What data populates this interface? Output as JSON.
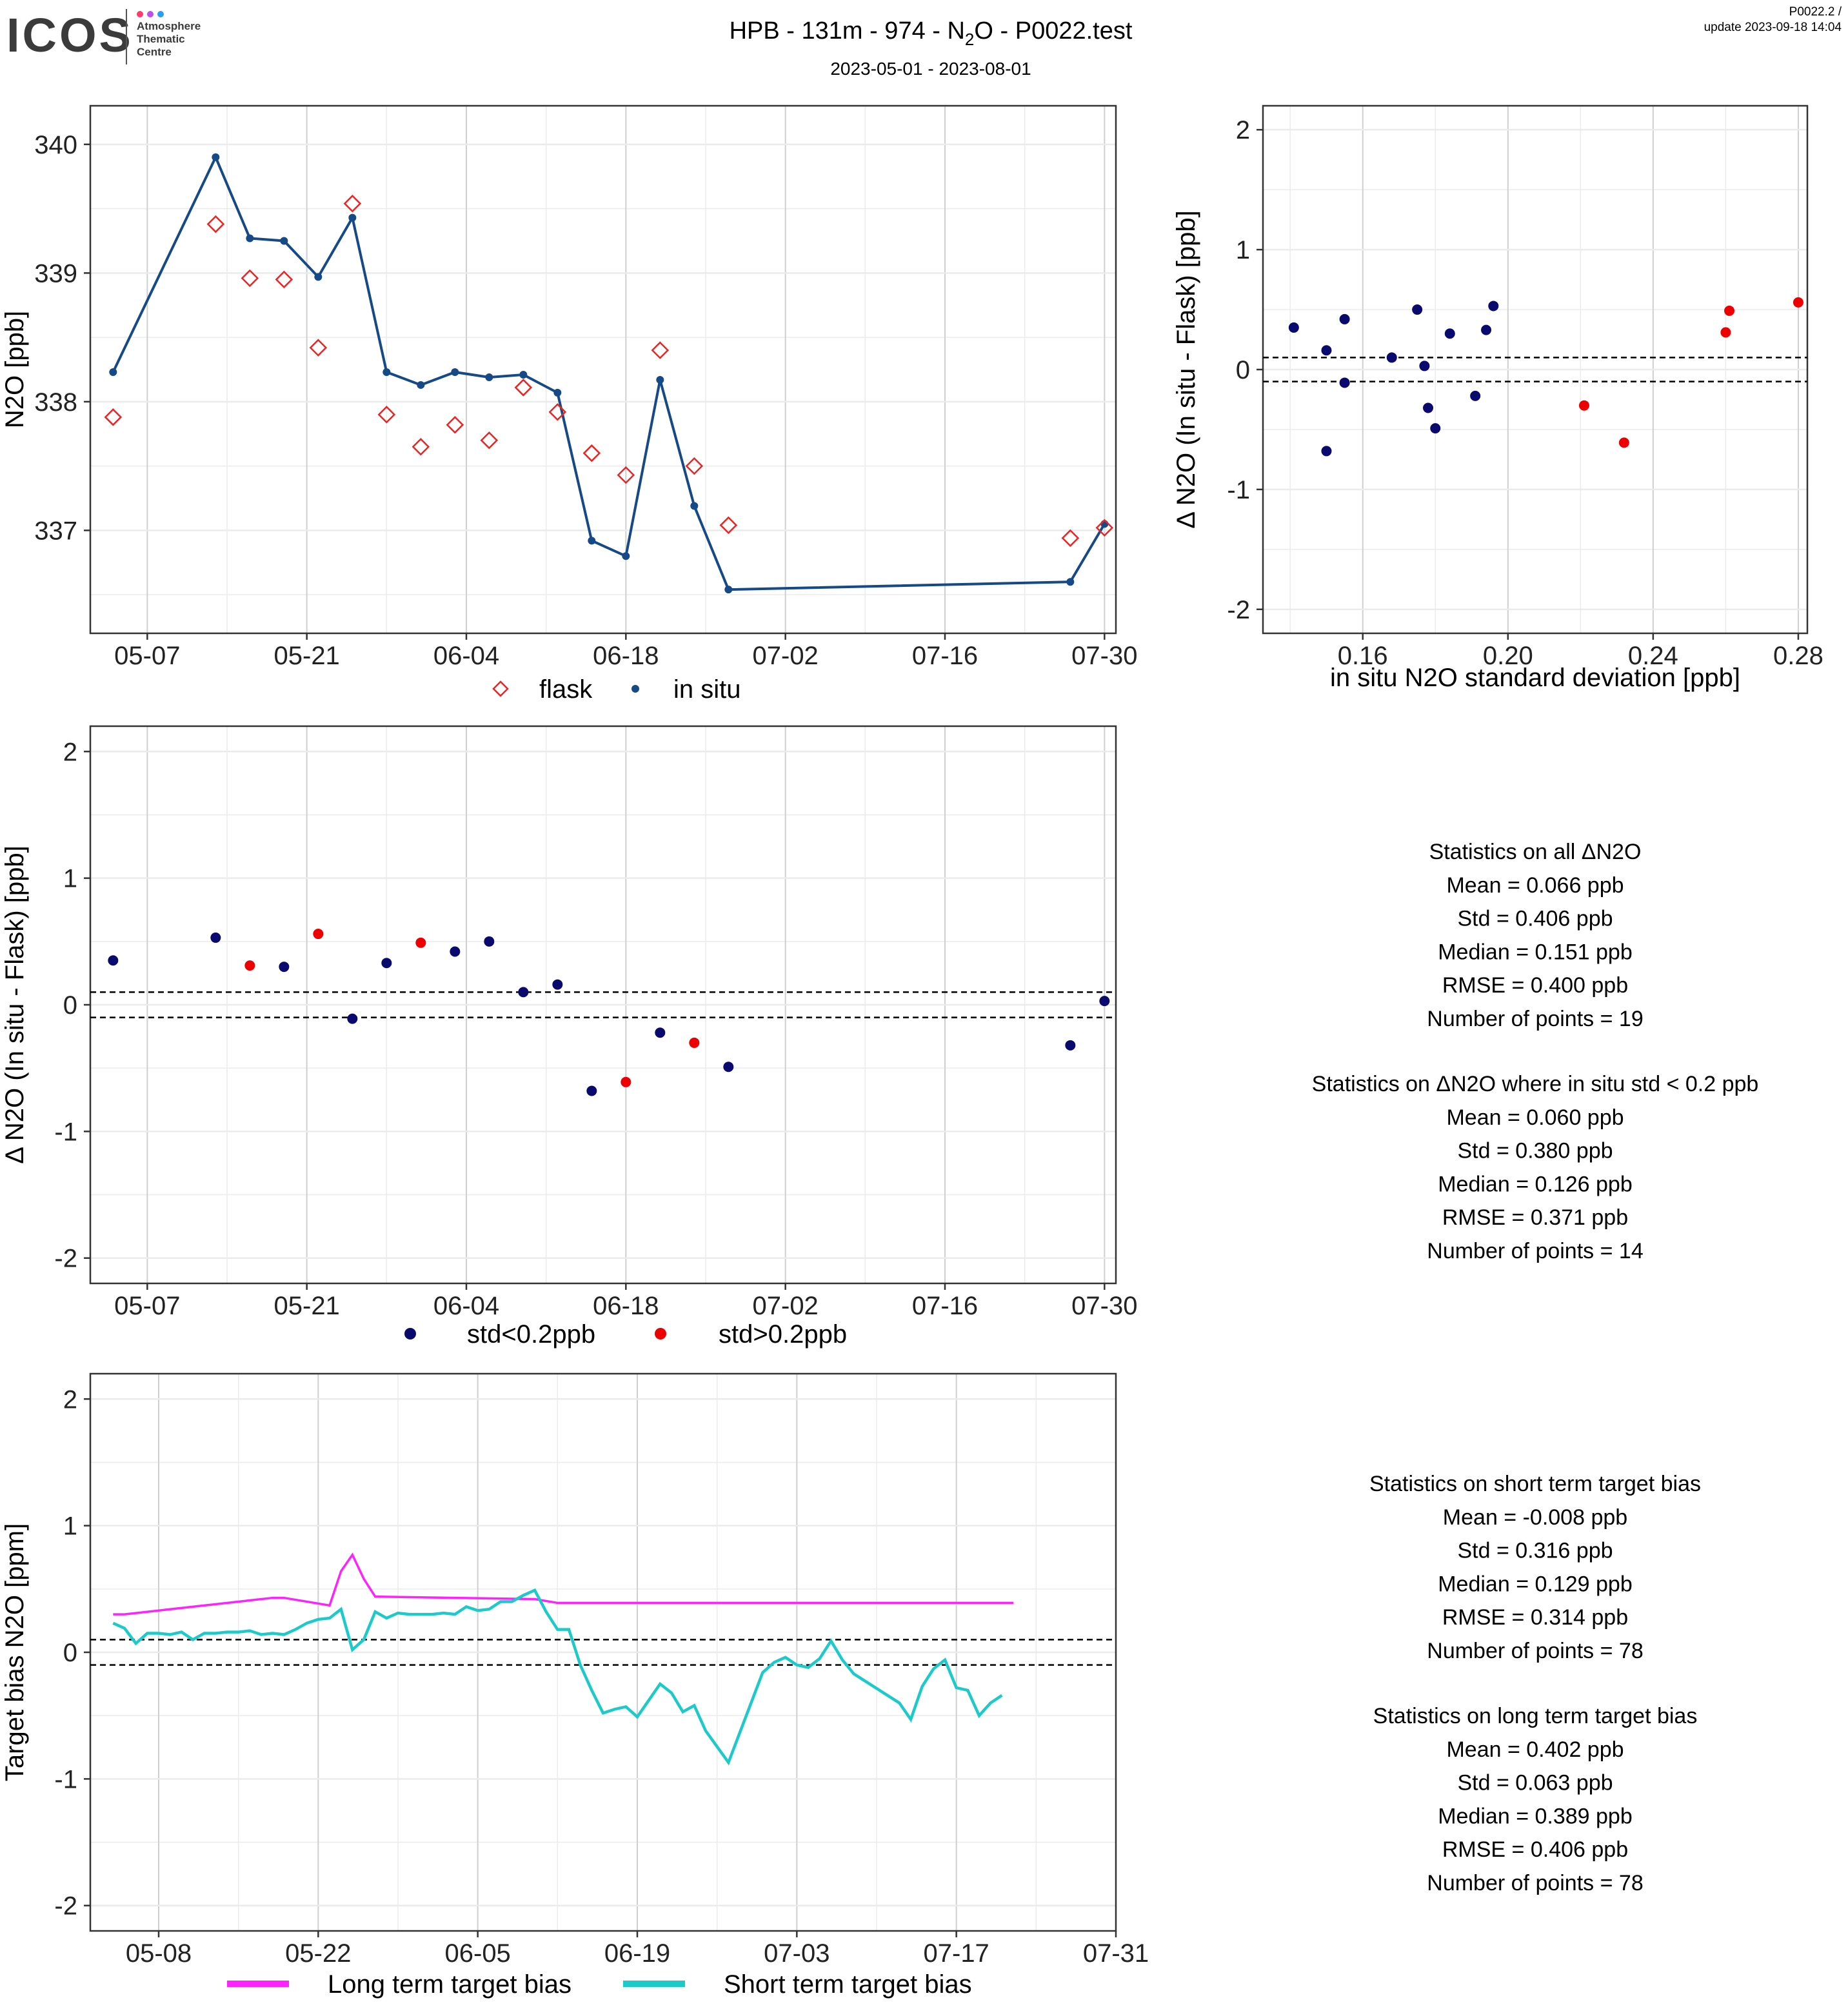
{
  "header": {
    "logo_text": "ICOS",
    "logo_sub": [
      "Atmosphere",
      "Thematic",
      "Centre"
    ],
    "title": "HPB - 131m - 974 - N2O - P0022.test",
    "date_range": "2023-05-01 - 2023-08-01",
    "version": "P0022.2 /",
    "update": "update  2023-09-18 14:04"
  },
  "colors": {
    "flask": "#ee2222",
    "insitu": "#154a86",
    "low_std": "#0a0a6e",
    "high_std": "#ee0000",
    "long_term": "#ff22ff",
    "short_term": "#1ccaca"
  },
  "chart_data": [
    {
      "id": "timeseries",
      "type": "scatter",
      "ylabel": "N2O [ppb]",
      "yticks": [
        337,
        338,
        339,
        340
      ],
      "ylim": [
        336.2,
        340.3
      ],
      "xlim": [
        "2023-05-02",
        "2023-07-31"
      ],
      "xticks": [
        "05-07",
        "05-21",
        "06-04",
        "06-18",
        "07-02",
        "07-16",
        "07-30"
      ],
      "series": [
        {
          "name": "flask",
          "marker": "open-diamond",
          "x": [
            "2023-05-04",
            "2023-05-13",
            "2023-05-16",
            "2023-05-19",
            "2023-05-22",
            "2023-05-25",
            "2023-05-28",
            "2023-05-31",
            "2023-06-03",
            "2023-06-06",
            "2023-06-09",
            "2023-06-12",
            "2023-06-15",
            "2023-06-18",
            "2023-06-21",
            "2023-06-24",
            "2023-06-27",
            "2023-07-27",
            "2023-07-30"
          ],
          "y": [
            337.88,
            339.38,
            338.96,
            338.95,
            338.42,
            339.54,
            337.9,
            337.65,
            337.82,
            337.7,
            338.11,
            337.92,
            337.6,
            337.43,
            338.4,
            337.5,
            337.04,
            336.94,
            337.02
          ]
        },
        {
          "name": "in situ",
          "marker": "dot-line",
          "x": [
            "2023-05-04",
            "2023-05-13",
            "2023-05-16",
            "2023-05-19",
            "2023-05-22",
            "2023-05-25",
            "2023-05-28",
            "2023-05-31",
            "2023-06-03",
            "2023-06-06",
            "2023-06-09",
            "2023-06-12",
            "2023-06-15",
            "2023-06-18",
            "2023-06-21",
            "2023-06-24",
            "2023-06-27",
            "2023-07-27",
            "2023-07-30"
          ],
          "y": [
            338.23,
            339.9,
            339.27,
            339.25,
            338.97,
            339.43,
            338.23,
            338.13,
            338.23,
            338.19,
            338.21,
            338.07,
            336.92,
            336.8,
            338.17,
            337.19,
            336.54,
            336.6,
            337.05
          ]
        }
      ]
    },
    {
      "id": "delta_vs_std",
      "type": "scatter",
      "xlabel": "in situ N2O standard deviation [ppb]",
      "ylabel": "Δ N2O (In situ - Flask) [ppb]",
      "xlim": [
        0.1325,
        0.2825
      ],
      "ylim": [
        -2.2,
        2.2
      ],
      "xticks": [
        "0.16",
        "0.20",
        "0.24",
        "0.28"
      ],
      "yticks": [
        "-2",
        "-1",
        "0",
        "1",
        "2"
      ],
      "hlines": [
        0.1,
        -0.1
      ],
      "series": [
        {
          "name": "std<0.2ppb",
          "x": [
            0.141,
            0.15,
            0.15,
            0.155,
            0.155,
            0.168,
            0.175,
            0.177,
            0.178,
            0.18,
            0.184,
            0.191,
            0.194,
            0.196
          ],
          "y": [
            0.35,
            0.16,
            -0.68,
            0.42,
            -0.11,
            0.1,
            0.5,
            0.03,
            -0.32,
            -0.49,
            0.3,
            -0.22,
            0.33,
            0.53
          ]
        },
        {
          "name": "std>0.2ppb",
          "x": [
            0.221,
            0.232,
            0.26,
            0.261,
            0.28
          ],
          "y": [
            -0.3,
            -0.61,
            0.31,
            0.49,
            0.56
          ]
        }
      ]
    },
    {
      "id": "delta_timeseries",
      "type": "scatter",
      "ylabel": "Δ N2O (In situ - Flask) [ppb]",
      "ylim": [
        -2.2,
        2.2
      ],
      "xlim": [
        "2023-05-02",
        "2023-07-31"
      ],
      "xticks": [
        "05-07",
        "05-21",
        "06-04",
        "06-18",
        "07-02",
        "07-16",
        "07-30"
      ],
      "yticks": [
        "-2",
        "-1",
        "0",
        "1",
        "2"
      ],
      "hlines": [
        0.1,
        -0.1
      ],
      "series": [
        {
          "name": "std<0.2ppb",
          "x": [
            "2023-05-04",
            "2023-05-13",
            "2023-05-19",
            "2023-05-25",
            "2023-05-28",
            "2023-06-03",
            "2023-06-06",
            "2023-06-09",
            "2023-06-12",
            "2023-06-15",
            "2023-06-21",
            "2023-06-27",
            "2023-07-27",
            "2023-07-30"
          ],
          "y": [
            0.35,
            0.53,
            0.3,
            -0.11,
            0.33,
            0.42,
            0.5,
            0.1,
            0.16,
            -0.68,
            -0.22,
            -0.49,
            -0.32,
            0.03
          ]
        },
        {
          "name": "std>0.2ppb",
          "x": [
            "2023-05-16",
            "2023-05-22",
            "2023-05-31",
            "2023-06-18",
            "2023-06-24"
          ],
          "y": [
            0.31,
            0.56,
            0.49,
            -0.61,
            -0.3
          ]
        }
      ]
    },
    {
      "id": "target_bias",
      "type": "line",
      "ylabel": "Target bias N2O [ppm]",
      "ylim": [
        -2.2,
        2.2
      ],
      "xlim": [
        "2023-05-02",
        "2023-07-31"
      ],
      "xticks": [
        "05-08",
        "05-22",
        "06-05",
        "06-19",
        "07-03",
        "07-17",
        "07-31"
      ],
      "yticks": [
        "-2",
        "-1",
        "0",
        "1",
        "2"
      ],
      "hlines": [
        0.1,
        -0.1
      ],
      "series": [
        {
          "name": "Long term target bias",
          "x": [
            "2023-05-04",
            "2023-05-05",
            "2023-05-18",
            "2023-05-19",
            "2023-05-23",
            "2023-05-24",
            "2023-05-25",
            "2023-05-26",
            "2023-05-27",
            "2023-06-10",
            "2023-06-12",
            "2023-07-22"
          ],
          "y": [
            0.3,
            0.3,
            0.43,
            0.43,
            0.37,
            0.64,
            0.77,
            0.58,
            0.44,
            0.42,
            0.39,
            0.39
          ]
        },
        {
          "name": "Short term target bias",
          "x": [
            "2023-05-04",
            "2023-05-05",
            "2023-05-06",
            "2023-05-07",
            "2023-05-08",
            "2023-05-09",
            "2023-05-10",
            "2023-05-11",
            "2023-05-12",
            "2023-05-13",
            "2023-05-14",
            "2023-05-15",
            "2023-05-16",
            "2023-05-17",
            "2023-05-18",
            "2023-05-19",
            "2023-05-20",
            "2023-05-21",
            "2023-05-22",
            "2023-05-23",
            "2023-05-24",
            "2023-05-25",
            "2023-05-26",
            "2023-05-27",
            "2023-05-28",
            "2023-05-29",
            "2023-05-30",
            "2023-05-31",
            "2023-06-01",
            "2023-06-02",
            "2023-06-03",
            "2023-06-04",
            "2023-06-05",
            "2023-06-06",
            "2023-06-07",
            "2023-06-08",
            "2023-06-09",
            "2023-06-10",
            "2023-06-11",
            "2023-06-12",
            "2023-06-13",
            "2023-06-14",
            "2023-06-15",
            "2023-06-16",
            "2023-06-17",
            "2023-06-18",
            "2023-06-19",
            "2023-06-21",
            "2023-06-22",
            "2023-06-23",
            "2023-06-24",
            "2023-06-25",
            "2023-06-27",
            "2023-06-30",
            "2023-07-01",
            "2023-07-02",
            "2023-07-03",
            "2023-07-04",
            "2023-07-05",
            "2023-07-06",
            "2023-07-07",
            "2023-07-08",
            "2023-07-12",
            "2023-07-13",
            "2023-07-14",
            "2023-07-15",
            "2023-07-16",
            "2023-07-17",
            "2023-07-18",
            "2023-07-19",
            "2023-07-20",
            "2023-07-21"
          ],
          "y": [
            0.23,
            0.19,
            0.07,
            0.15,
            0.15,
            0.14,
            0.16,
            0.1,
            0.15,
            0.15,
            0.16,
            0.16,
            0.17,
            0.14,
            0.15,
            0.14,
            0.18,
            0.23,
            0.26,
            0.27,
            0.34,
            0.02,
            0.1,
            0.32,
            0.27,
            0.31,
            0.3,
            0.3,
            0.3,
            0.31,
            0.3,
            0.36,
            0.33,
            0.34,
            0.4,
            0.4,
            0.45,
            0.49,
            0.32,
            0.18,
            0.18,
            -0.1,
            -0.3,
            -0.48,
            -0.45,
            -0.43,
            -0.51,
            -0.25,
            -0.32,
            -0.47,
            -0.42,
            -0.62,
            -0.87,
            -0.16,
            -0.08,
            -0.04,
            -0.1,
            -0.12,
            -0.05,
            0.09,
            -0.06,
            -0.17,
            -0.4,
            -0.53,
            -0.27,
            -0.13,
            -0.06,
            -0.28,
            -0.3,
            -0.5,
            -0.4,
            -0.34
          ]
        }
      ]
    }
  ],
  "legends": {
    "timeseries": [
      "flask",
      "in situ"
    ],
    "delta": [
      "std<0.2ppb",
      "std>0.2ppb"
    ],
    "bias": [
      "Long term target bias",
      "Short term target bias"
    ]
  },
  "stats": {
    "delta_all": [
      "Statistics on all ΔN2O",
      "Mean =  0.066 ppb",
      "Std =  0.406 ppb",
      "Median =  0.151 ppb",
      "RMSE =  0.400 ppb",
      "Number of points =  19"
    ],
    "delta_low": [
      "Statistics on ΔN2O where in situ std < 0.2 ppb",
      "Mean =  0.060 ppb",
      "Std =  0.380 ppb",
      "Median =  0.126 ppb",
      "RMSE =  0.371 ppb",
      "Number of points =  14"
    ],
    "short_term": [
      "Statistics on short term target bias",
      "Mean =  -0.008 ppb",
      "Std =  0.316 ppb",
      "Median =  0.129 ppb",
      "RMSE =  0.314 ppb",
      "Number of points =  78"
    ],
    "long_term": [
      "Statistics on long term target bias",
      "Mean =  0.402 ppb",
      "Std =  0.063 ppb",
      "Median =  0.389 ppb",
      "RMSE =  0.406 ppb",
      "Number of points =  78"
    ]
  }
}
